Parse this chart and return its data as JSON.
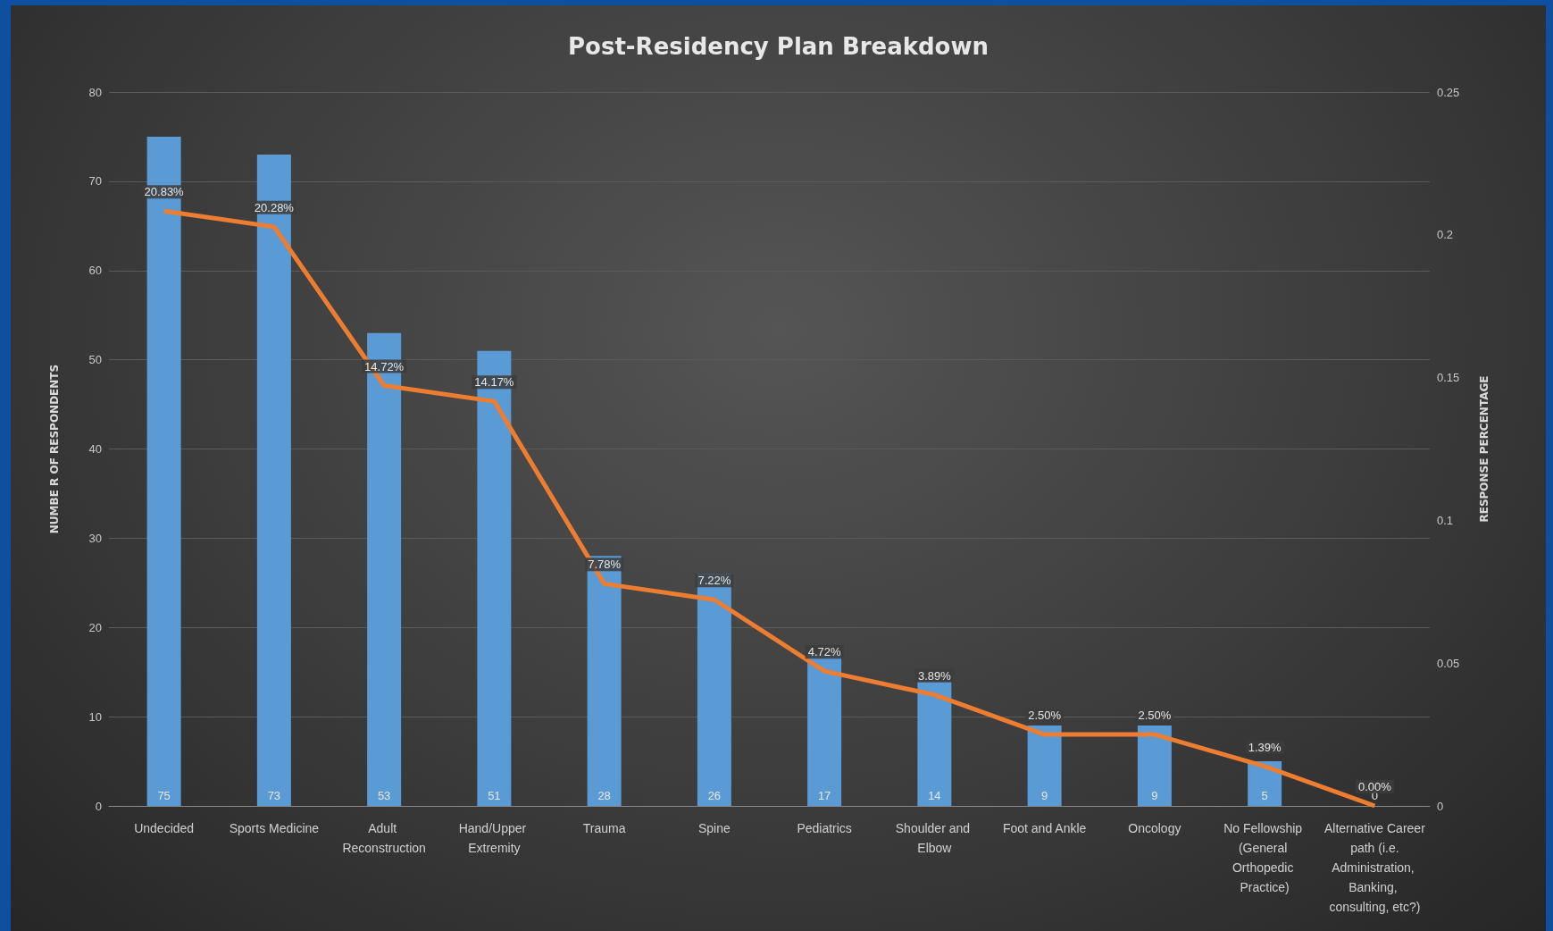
{
  "chart_data": {
    "type": "bar",
    "title": "Post-Residency Plan Breakdown",
    "ylabel": "NUMBE R OF RESPONDENTS",
    "y2label": "RESPONSE PERCENTAGE",
    "categories": [
      "Undecided",
      "Sports Medicine",
      "Adult Reconstruction",
      "Hand/Upper Extremity",
      "Trauma",
      "Spine",
      "Pediatrics",
      "Shoulder and Elbow",
      "Foot and Ankle",
      "Oncology",
      "No Fellowship (General Orthopedic Practice)",
      "Alternative Career path (i.e. Administration, Banking, consulting, etc?)"
    ],
    "series": [
      {
        "color": "#5b9bd5",
        "values": [
          75,
          73,
          53,
          51,
          28,
          26,
          17,
          14,
          9,
          9,
          5,
          0
        ],
        "value_labels": [
          "75",
          "73",
          "53",
          "51",
          "28",
          "26",
          "17",
          "14",
          "9",
          "9",
          "5",
          "0"
        ]
      },
      {
        "type": "line",
        "axis": "y2",
        "color": "#ed7d31",
        "values": [
          0.2083,
          0.2028,
          0.1472,
          0.1417,
          0.0778,
          0.0722,
          0.0472,
          0.0389,
          0.025,
          0.025,
          0.0139,
          0
        ],
        "value_labels": [
          "20.83%",
          "20.28%",
          "14.72%",
          "14.17%",
          "7.78%",
          "7.22%",
          "4.72%",
          "3.89%",
          "2.50%",
          "2.50%",
          "1.39%",
          "0.00%"
        ]
      }
    ],
    "ylim": [
      0,
      80
    ],
    "yticks": [
      0,
      10,
      20,
      30,
      40,
      50,
      60,
      70,
      80
    ],
    "y2lim": [
      0,
      0.25
    ],
    "y2ticks": [
      0,
      0.05,
      0.1,
      0.15,
      0.2,
      0.25
    ],
    "grid": "y",
    "marker": "none",
    "line_style": "solid"
  }
}
